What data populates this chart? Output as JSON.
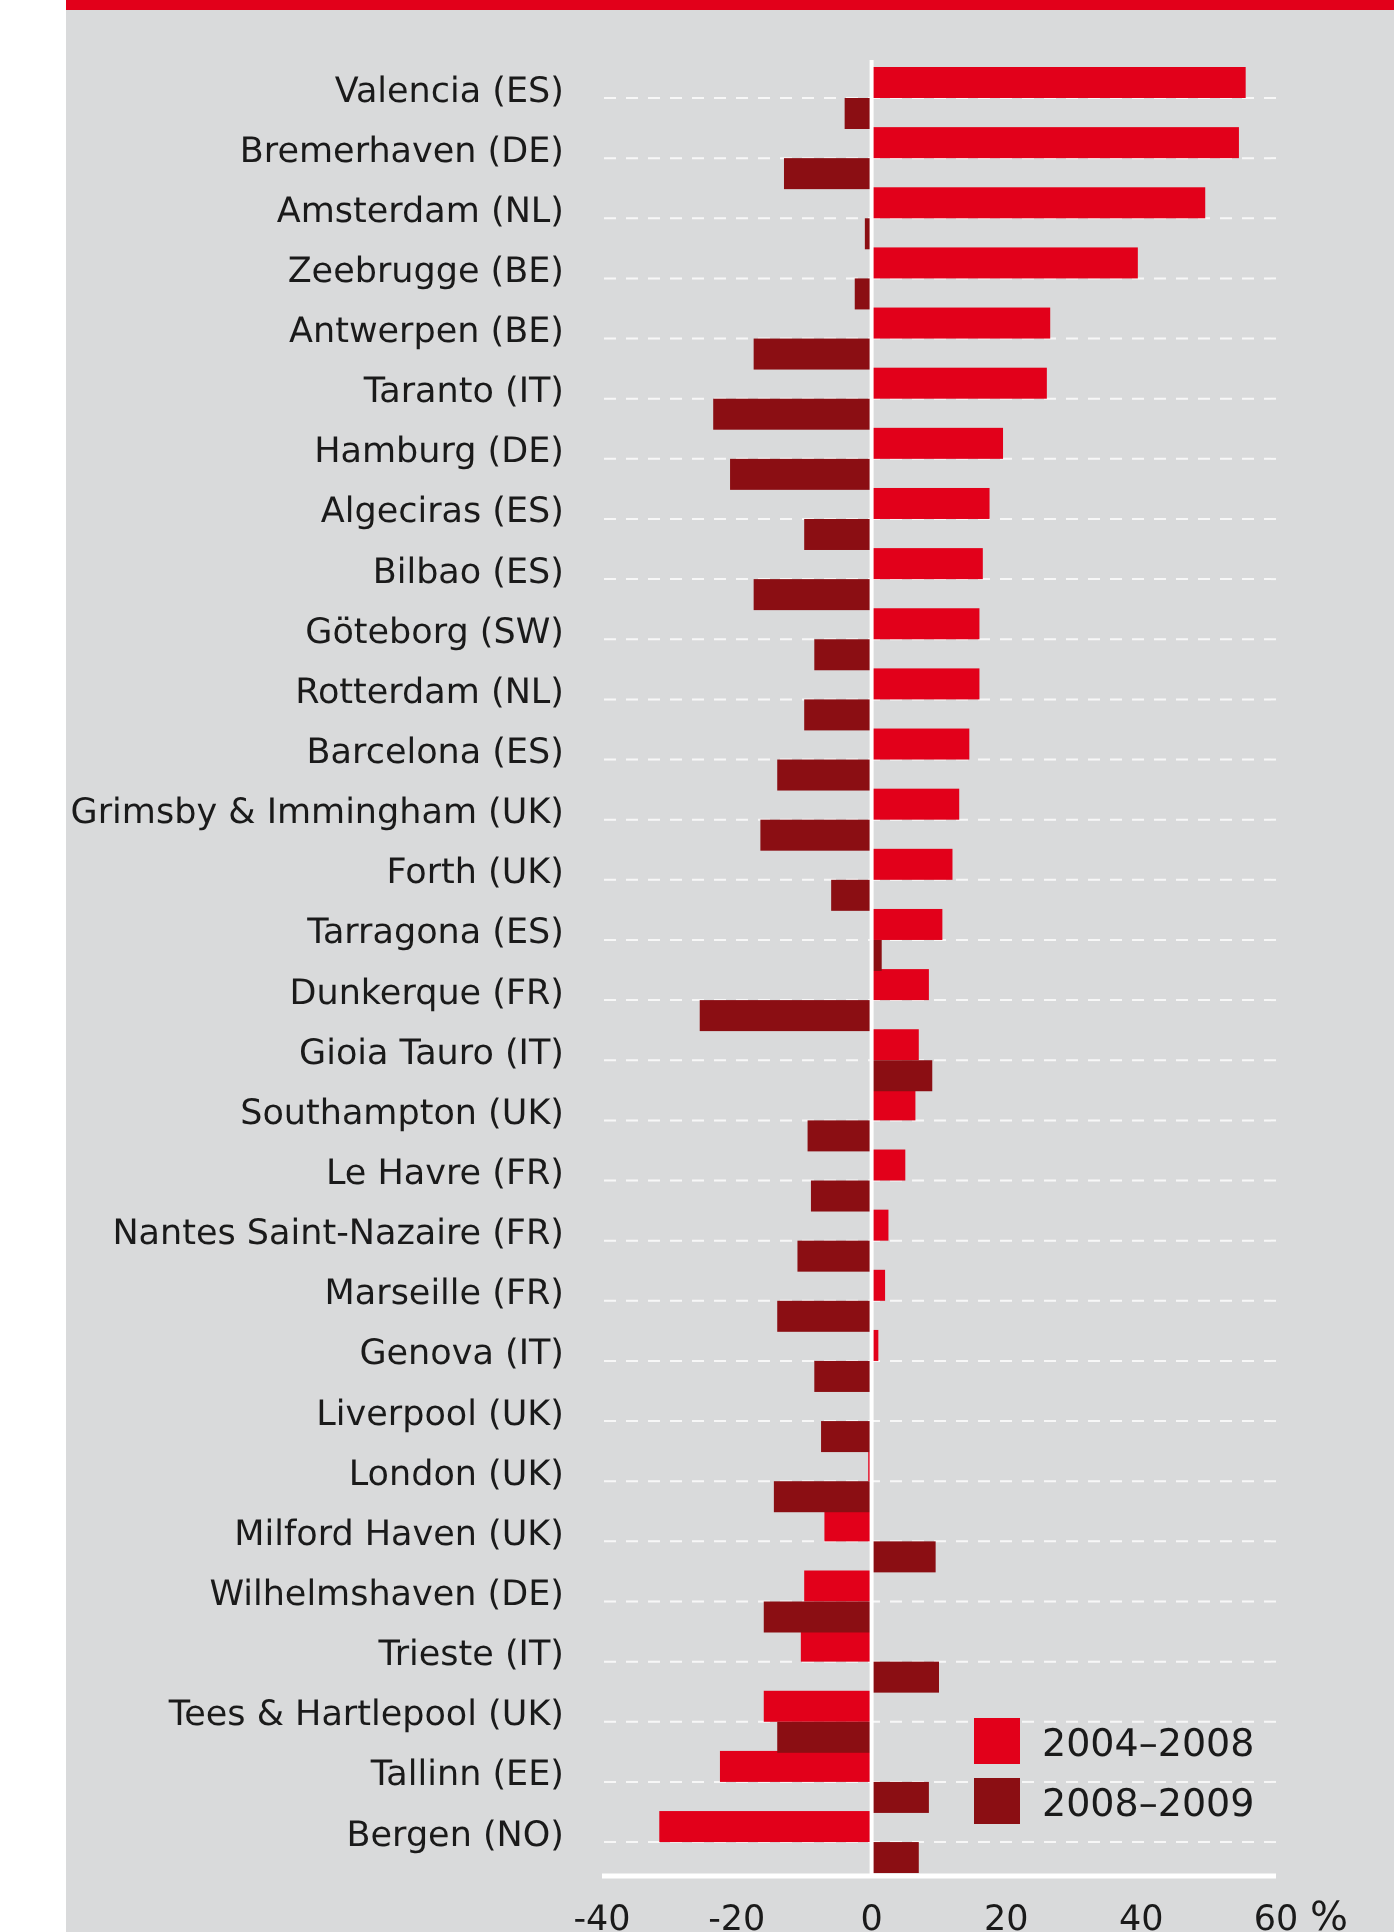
{
  "chart_data": {
    "type": "bar",
    "orientation": "horizontal",
    "xlabel": "%",
    "categories": [
      "Valencia (ES)",
      "Bremerhaven (DE)",
      "Amsterdam (NL)",
      "Zeebrugge (BE)",
      "Antwerpen (BE)",
      "Taranto (IT)",
      "Hamburg (DE)",
      "Algeciras (ES)",
      "Bilbao (ES)",
      "Göteborg (SW)",
      "Rotterdam (NL)",
      "Barcelona (ES)",
      "Grimsby & Immingham (UK)",
      "Forth (UK)",
      "Tarragona (ES)",
      "Dunkerque (FR)",
      "Gioia Tauro (IT)",
      "Southampton (UK)",
      "Le Havre (FR)",
      "Nantes Saint-Nazaire (FR)",
      "Marseille (FR)",
      "Genova (IT)",
      "Liverpool (UK)",
      "London (UK)",
      "Milford Haven (UK)",
      "Wilhelmshaven (DE)",
      "Trieste (IT)",
      "Tees & Hartlepool (UK)",
      "Tallinn (EE)",
      "Bergen (NO)"
    ],
    "series": [
      {
        "name": "2004–2008",
        "color": "#e2001a",
        "values": [
          55.5,
          54.5,
          49.5,
          39.5,
          26.5,
          26,
          19.5,
          17.5,
          16.5,
          16,
          16,
          14.5,
          13,
          12,
          10.5,
          8.5,
          7,
          6.5,
          5,
          2.5,
          2,
          1,
          0,
          -0.5,
          -7,
          -10,
          -10.5,
          -16,
          -22.5,
          -31.5
        ]
      },
      {
        "name": "2008–2009",
        "color": "#8b0e13",
        "values": [
          -4,
          -13,
          -1,
          -2.5,
          -17.5,
          -23.5,
          -21,
          -10,
          -17.5,
          -8.5,
          -10,
          -14,
          -16.5,
          -6,
          1.5,
          -25.5,
          9,
          -9.5,
          -9,
          -11,
          -14,
          -8.5,
          -7.5,
          -14.5,
          9.5,
          -16,
          10,
          -14,
          8.5,
          7
        ]
      }
    ],
    "xlim": [
      -40,
      60
    ],
    "xticks": [
      -40,
      -20,
      0,
      20,
      40,
      60
    ],
    "grid": "y",
    "legend": "bottom right"
  }
}
